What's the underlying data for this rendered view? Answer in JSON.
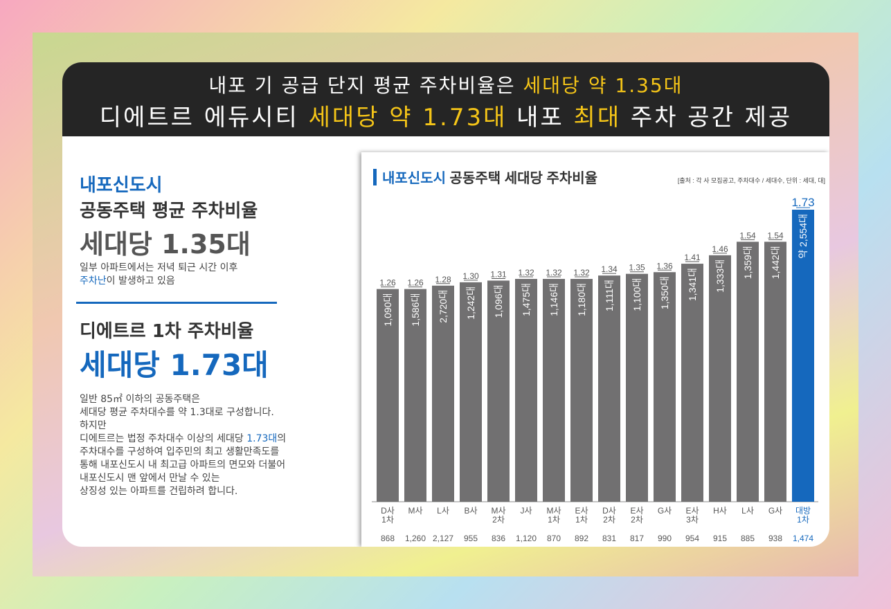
{
  "header": {
    "line1_a": "내포 기 공급 단지 평균 주차비율은 ",
    "line1_b": "세대당 약 1.35대",
    "line2_a": "디에트르 에듀시티 ",
    "line2_b": "세대당 약 1.73대",
    "line2_c": " 내포 ",
    "line2_d": "최대",
    "line2_e": " 주차 공간 제공"
  },
  "left": {
    "title_city": "내포신도시",
    "title_sub": "공동주택 평균 주차비율",
    "avg_ratio": "세대당 1.35대",
    "note_line1": "일부 아파트에서는 저녁 퇴근 시간 이후",
    "note_hl": "주차난",
    "note_rest": "이 발생하고 있음",
    "dietre_title": "디에트르 1차 주차비율",
    "dietre_ratio": "세대당 1.73대",
    "body1": "일반 85㎡ 이하의 공동주택은",
    "body2": "세대당 평균 주차대수를 약 1.3대로 구성합니다.",
    "body3": "하지만",
    "body4a": "디에트르는 법정 주차대수 이상의 세대당 ",
    "body4b": "1.73대",
    "body4c": "의",
    "body5": "주차대수를 구성하여 입주민의 최고 생활만족도를",
    "body6": "통해 내포신도시 내 최고급 아파트의 면모와 더불어",
    "body7": "내포신도시 맨 앞에서 만날 수 있는",
    "body8": "상징성 있는 아파트를 건립하려 합니다."
  },
  "chart_data": {
    "type": "bar",
    "title_hl": "내포신도시",
    "title_rest": " 공동주택 세대당 주차비율",
    "source": "[출처 : 각 사 모집공고, 주차대수 / 세대수, 단위 : 세대, 대]",
    "categories": [
      [
        "D사",
        "1차"
      ],
      [
        "M사"
      ],
      [
        "L사"
      ],
      [
        "B사"
      ],
      [
        "M사",
        "2차"
      ],
      [
        "J사"
      ],
      [
        "M사",
        "1차"
      ],
      [
        "E사",
        "1차"
      ],
      [
        "D사",
        "2차"
      ],
      [
        "E사",
        "2차"
      ],
      [
        "G사"
      ],
      [
        "E사",
        "3차"
      ],
      [
        "H사"
      ],
      [
        "L사"
      ],
      [
        "G사"
      ],
      [
        "대방",
        "1차"
      ]
    ],
    "values": [
      1.26,
      1.26,
      1.28,
      1.3,
      1.31,
      1.32,
      1.32,
      1.32,
      1.34,
      1.35,
      1.36,
      1.41,
      1.46,
      1.54,
      1.54,
      1.73
    ],
    "value_labels": [
      "1.26",
      "1.26",
      "1.28",
      "1.30",
      "1.31",
      "1.32",
      "1.32",
      "1.32",
      "1.34",
      "1.35",
      "1.36",
      "1.41",
      "1.46",
      "1.54",
      "1.54",
      "1.73"
    ],
    "parking": [
      "1,090대",
      "1,586대",
      "2,720대",
      "1,242대",
      "1,096대",
      "1,475대",
      "1,146대",
      "1,180대",
      "1,111대",
      "1,100대",
      "1,350대",
      "1,341대",
      "1,333대",
      "1,359대",
      "1,442대",
      "약 2,554대"
    ],
    "households": [
      "868",
      "1,260",
      "2,127",
      "955",
      "836",
      "1,120",
      "870",
      "892",
      "831",
      "817",
      "990",
      "954",
      "915",
      "885",
      "938",
      "1,474"
    ],
    "highlight_index": 15,
    "colors": {
      "bar": "#717071",
      "highlight": "#1568bd",
      "text": "#555555"
    }
  }
}
